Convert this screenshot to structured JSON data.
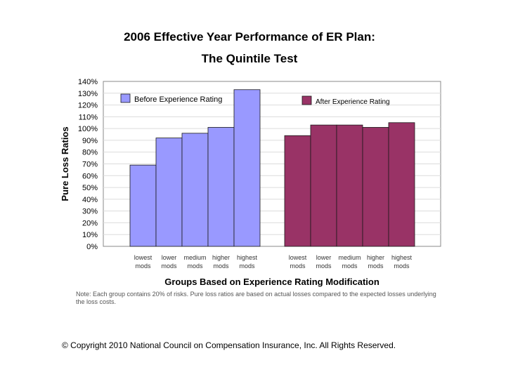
{
  "chart_data": {
    "type": "bar",
    "title": "2006 Effective Year Performance of ER Plan:",
    "subtitle": "The Quintile Test",
    "ylabel": "Pure Loss Ratios",
    "xlabel": "Groups Based on Experience Rating Modification",
    "ylim": [
      0,
      140
    ],
    "ytick_step": 10,
    "ytick_suffix": "%",
    "categories": [
      [
        "lowest",
        "mods"
      ],
      [
        "lower",
        "mods"
      ],
      [
        "medium",
        "mods"
      ],
      [
        "higher",
        "mods"
      ],
      [
        "highest",
        "mods"
      ]
    ],
    "series": [
      {
        "name": "Before Experience Rating",
        "color": "#9999ff",
        "values": [
          69,
          92,
          96,
          101,
          133
        ]
      },
      {
        "name": "After Experience Rating",
        "color": "#993366",
        "values": [
          94,
          103,
          103,
          101,
          105
        ]
      }
    ],
    "legend": "inside-top"
  },
  "note": "Note:  Each group contains 20% of risks.  Pure loss ratios are based on actual losses compared to the expected losses underlying the loss costs.",
  "copyright": "© Copyright 2010 National Council on Compensation Insurance, Inc. All Rights Reserved."
}
